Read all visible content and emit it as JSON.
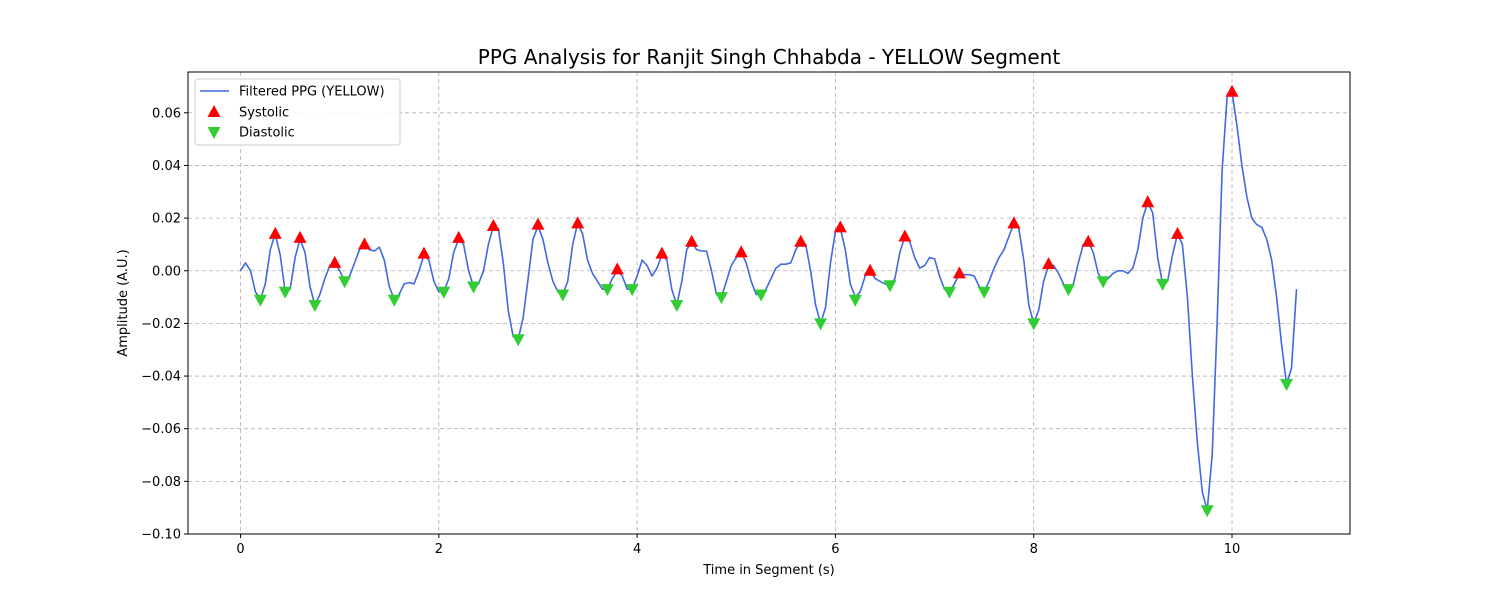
{
  "chart_data": {
    "type": "line",
    "title": "PPG Analysis for Ranjit Singh Chhabda - YELLOW Segment",
    "xlabel": "Time in Segment (s)",
    "ylabel": "Amplitude (A.U.)",
    "xlim": [
      -0.53,
      11.19
    ],
    "ylim": [
      -0.1,
      0.0755
    ],
    "xticks": [
      0,
      2,
      4,
      6,
      8,
      10
    ],
    "xtick_labels": [
      "0",
      "2",
      "4",
      "6",
      "8",
      "10"
    ],
    "yticks": [
      -0.1,
      -0.08,
      -0.06,
      -0.04,
      -0.02,
      0.0,
      0.02,
      0.04,
      0.06
    ],
    "ytick_labels": [
      "−0.10",
      "−0.08",
      "−0.06",
      "−0.04",
      "−0.02",
      "0.00",
      "0.02",
      "0.04",
      "0.06"
    ],
    "grid": true,
    "legend_position": "top-left",
    "series": [
      {
        "name": "Filtered PPG (YELLOW)",
        "kind": "line",
        "color": "#4169e1",
        "points": [
          [
            0,
            0
          ],
          [
            0.05,
            0.003
          ],
          [
            0.1,
            0.0
          ],
          [
            0.15,
            -0.008
          ],
          [
            0.2,
            -0.011
          ],
          [
            0.25,
            -0.005
          ],
          [
            0.3,
            0.008
          ],
          [
            0.35,
            0.014
          ],
          [
            0.4,
            0.006
          ],
          [
            0.45,
            -0.008
          ],
          [
            0.5,
            -0.007
          ],
          [
            0.55,
            0.005
          ],
          [
            0.6,
            0.012
          ],
          [
            0.65,
            0.007
          ],
          [
            0.7,
            -0.006
          ],
          [
            0.75,
            -0.013
          ],
          [
            0.8,
            -0.009
          ],
          [
            0.85,
            -0.003
          ],
          [
            0.9,
            0.002
          ],
          [
            0.95,
            0.003
          ],
          [
            1.0,
            0.0
          ],
          [
            1.05,
            -0.004
          ],
          [
            1.1,
            -0.002
          ],
          [
            1.15,
            0.003
          ],
          [
            1.2,
            0.008
          ],
          [
            1.25,
            0.01
          ],
          [
            1.3,
            0.008
          ],
          [
            1.35,
            0.0075
          ],
          [
            1.4,
            0.009
          ],
          [
            1.45,
            0.004
          ],
          [
            1.5,
            -0.006
          ],
          [
            1.55,
            -0.011
          ],
          [
            1.6,
            -0.009
          ],
          [
            1.65,
            -0.005
          ],
          [
            1.7,
            -0.0045
          ],
          [
            1.75,
            -0.005
          ],
          [
            1.8,
            0.0
          ],
          [
            1.85,
            0.006
          ],
          [
            1.9,
            0.004
          ],
          [
            1.95,
            -0.004
          ],
          [
            2.0,
            -0.008
          ],
          [
            2.05,
            -0.008
          ],
          [
            2.1,
            -0.003
          ],
          [
            2.15,
            0.007
          ],
          [
            2.2,
            0.012
          ],
          [
            2.25,
            0.01
          ],
          [
            2.3,
            0.0
          ],
          [
            2.35,
            -0.006
          ],
          [
            2.4,
            -0.005
          ],
          [
            2.45,
            0.0
          ],
          [
            2.5,
            0.01
          ],
          [
            2.55,
            0.017
          ],
          [
            2.6,
            0.016
          ],
          [
            2.65,
            0.003
          ],
          [
            2.7,
            -0.015
          ],
          [
            2.75,
            -0.025
          ],
          [
            2.8,
            -0.026
          ],
          [
            2.85,
            -0.018
          ],
          [
            2.9,
            -0.003
          ],
          [
            2.95,
            0.012
          ],
          [
            3.0,
            0.017
          ],
          [
            3.05,
            0.012
          ],
          [
            3.1,
            0.003
          ],
          [
            3.15,
            -0.004
          ],
          [
            3.2,
            -0.008
          ],
          [
            3.25,
            -0.009
          ],
          [
            3.3,
            -0.004
          ],
          [
            3.35,
            0.01
          ],
          [
            3.4,
            0.018
          ],
          [
            3.45,
            0.014
          ],
          [
            3.5,
            0.004
          ],
          [
            3.55,
            -0.001
          ],
          [
            3.6,
            -0.004
          ],
          [
            3.65,
            -0.007
          ],
          [
            3.7,
            -0.007
          ],
          [
            3.75,
            -0.003
          ],
          [
            3.8,
            0.0
          ],
          [
            3.85,
            -0.002
          ],
          [
            3.9,
            -0.007
          ],
          [
            3.95,
            -0.007
          ],
          [
            4.0,
            -0.002
          ],
          [
            4.05,
            0.004
          ],
          [
            4.1,
            0.002
          ],
          [
            4.15,
            -0.002
          ],
          [
            4.2,
            0.001
          ],
          [
            4.25,
            0.006
          ],
          [
            4.3,
            0.004
          ],
          [
            4.35,
            -0.007
          ],
          [
            4.4,
            -0.013
          ],
          [
            4.45,
            -0.004
          ],
          [
            4.5,
            0.008
          ],
          [
            4.55,
            0.011
          ],
          [
            4.6,
            0.008
          ],
          [
            4.65,
            0.0075
          ],
          [
            4.7,
            0.0075
          ],
          [
            4.75,
            0.0
          ],
          [
            4.8,
            -0.009
          ],
          [
            4.85,
            -0.01
          ],
          [
            4.9,
            -0.004
          ],
          [
            4.95,
            0.002
          ],
          [
            5.0,
            0.005
          ],
          [
            5.05,
            0.007
          ],
          [
            5.1,
            0.003
          ],
          [
            5.15,
            -0.004
          ],
          [
            5.2,
            -0.009
          ],
          [
            5.25,
            -0.009
          ],
          [
            5.3,
            -0.007
          ],
          [
            5.35,
            -0.003
          ],
          [
            5.4,
            0.001
          ],
          [
            5.45,
            0.0025
          ],
          [
            5.5,
            0.0025
          ],
          [
            5.55,
            0.003
          ],
          [
            5.6,
            0.008
          ],
          [
            5.65,
            0.011
          ],
          [
            5.7,
            0.01
          ],
          [
            5.75,
            0.0
          ],
          [
            5.8,
            -0.013
          ],
          [
            5.85,
            -0.02
          ],
          [
            5.9,
            -0.014
          ],
          [
            5.95,
            0.003
          ],
          [
            6.0,
            0.015
          ],
          [
            6.05,
            0.016
          ],
          [
            6.1,
            0.008
          ],
          [
            6.15,
            -0.005
          ],
          [
            6.2,
            -0.01
          ],
          [
            6.25,
            -0.008
          ],
          [
            6.3,
            -0.002
          ],
          [
            6.35,
            0.0
          ],
          [
            6.4,
            -0.003
          ],
          [
            6.45,
            -0.004
          ],
          [
            6.5,
            -0.005
          ],
          [
            6.55,
            -0.0055
          ],
          [
            6.6,
            -0.003
          ],
          [
            6.65,
            0.007
          ],
          [
            6.7,
            0.013
          ],
          [
            6.75,
            0.011
          ],
          [
            6.8,
            0.005
          ],
          [
            6.85,
            0.001
          ],
          [
            6.9,
            0.002
          ],
          [
            6.95,
            0.005
          ],
          [
            7.0,
            0.0045
          ],
          [
            7.05,
            -0.002
          ],
          [
            7.1,
            -0.007
          ],
          [
            7.15,
            -0.008
          ],
          [
            7.2,
            -0.005
          ],
          [
            7.25,
            -0.001
          ],
          [
            7.3,
            -0.0015
          ],
          [
            7.35,
            -0.0015
          ],
          [
            7.4,
            -0.002
          ],
          [
            7.45,
            -0.006
          ],
          [
            7.5,
            -0.008
          ],
          [
            7.55,
            -0.004
          ],
          [
            7.6,
            0.001
          ],
          [
            7.65,
            0.005
          ],
          [
            7.7,
            0.008
          ],
          [
            7.75,
            0.013
          ],
          [
            7.8,
            0.018
          ],
          [
            7.85,
            0.016
          ],
          [
            7.9,
            0.004
          ],
          [
            7.95,
            -0.013
          ],
          [
            8.0,
            -0.02
          ],
          [
            8.05,
            -0.015
          ],
          [
            8.1,
            -0.004
          ],
          [
            8.15,
            0.002
          ],
          [
            8.2,
            0.002
          ],
          [
            8.25,
            -0.001
          ],
          [
            8.3,
            -0.005
          ],
          [
            8.35,
            -0.007
          ],
          [
            8.4,
            -0.005
          ],
          [
            8.45,
            0.003
          ],
          [
            8.5,
            0.01
          ],
          [
            8.55,
            0.011
          ],
          [
            8.6,
            0.007
          ],
          [
            8.65,
            -0.001
          ],
          [
            8.7,
            -0.004
          ],
          [
            8.75,
            -0.003
          ],
          [
            8.8,
            -0.001
          ],
          [
            8.85,
            0.0
          ],
          [
            8.9,
            0.0
          ],
          [
            8.95,
            -0.001
          ],
          [
            9.0,
            0.001
          ],
          [
            9.05,
            0.008
          ],
          [
            9.1,
            0.02
          ],
          [
            9.15,
            0.026
          ],
          [
            9.2,
            0.022
          ],
          [
            9.25,
            0.005
          ],
          [
            9.3,
            -0.005
          ],
          [
            9.35,
            -0.004
          ],
          [
            9.4,
            0.006
          ],
          [
            9.45,
            0.014
          ],
          [
            9.5,
            0.01
          ],
          [
            9.55,
            -0.01
          ],
          [
            9.6,
            -0.04
          ],
          [
            9.65,
            -0.065
          ],
          [
            9.7,
            -0.084
          ],
          [
            9.75,
            -0.091
          ],
          [
            9.8,
            -0.07
          ],
          [
            9.85,
            -0.02
          ],
          [
            9.9,
            0.038
          ],
          [
            9.95,
            0.066
          ],
          [
            10.0,
            0.068
          ],
          [
            10.05,
            0.055
          ],
          [
            10.1,
            0.04
          ],
          [
            10.15,
            0.028
          ],
          [
            10.2,
            0.02
          ],
          [
            10.25,
            0.0175
          ],
          [
            10.3,
            0.0165
          ],
          [
            10.35,
            0.012
          ],
          [
            10.4,
            0.004
          ],
          [
            10.45,
            -0.01
          ],
          [
            10.5,
            -0.028
          ],
          [
            10.55,
            -0.043
          ],
          [
            10.6,
            -0.037
          ],
          [
            10.65,
            -0.007
          ]
        ]
      },
      {
        "name": "Systolic",
        "kind": "marker",
        "marker": "triangle-up",
        "color": "#ff0000",
        "points": [
          [
            0.35,
            0.014
          ],
          [
            0.6,
            0.0125
          ],
          [
            0.95,
            0.003
          ],
          [
            1.25,
            0.01
          ],
          [
            1.85,
            0.0065
          ],
          [
            2.2,
            0.0125
          ],
          [
            2.55,
            0.017
          ],
          [
            3.0,
            0.0175
          ],
          [
            3.4,
            0.018
          ],
          [
            3.8,
            0.0005
          ],
          [
            4.25,
            0.0065
          ],
          [
            4.55,
            0.011
          ],
          [
            5.05,
            0.007
          ],
          [
            5.65,
            0.011
          ],
          [
            6.05,
            0.0165
          ],
          [
            6.35,
            0.0
          ],
          [
            6.7,
            0.013
          ],
          [
            7.25,
            -0.001
          ],
          [
            7.8,
            0.018
          ],
          [
            8.15,
            0.0025
          ],
          [
            8.55,
            0.011
          ],
          [
            9.15,
            0.026
          ],
          [
            9.45,
            0.014
          ],
          [
            10.0,
            0.068
          ]
        ]
      },
      {
        "name": "Diastolic",
        "kind": "marker",
        "marker": "triangle-down",
        "color": "#32cd32",
        "points": [
          [
            0.2,
            -0.011
          ],
          [
            0.45,
            -0.008
          ],
          [
            0.75,
            -0.013
          ],
          [
            1.05,
            -0.004
          ],
          [
            1.55,
            -0.011
          ],
          [
            2.05,
            -0.008
          ],
          [
            2.35,
            -0.006
          ],
          [
            2.8,
            -0.026
          ],
          [
            3.25,
            -0.009
          ],
          [
            3.7,
            -0.007
          ],
          [
            3.95,
            -0.007
          ],
          [
            4.4,
            -0.013
          ],
          [
            4.85,
            -0.01
          ],
          [
            5.25,
            -0.009
          ],
          [
            5.85,
            -0.02
          ],
          [
            6.2,
            -0.011
          ],
          [
            6.55,
            -0.0055
          ],
          [
            7.15,
            -0.008
          ],
          [
            7.5,
            -0.008
          ],
          [
            8.0,
            -0.02
          ],
          [
            8.35,
            -0.007
          ],
          [
            8.7,
            -0.004
          ],
          [
            9.3,
            -0.005
          ],
          [
            9.75,
            -0.091
          ],
          [
            10.55,
            -0.043
          ]
        ]
      }
    ]
  }
}
